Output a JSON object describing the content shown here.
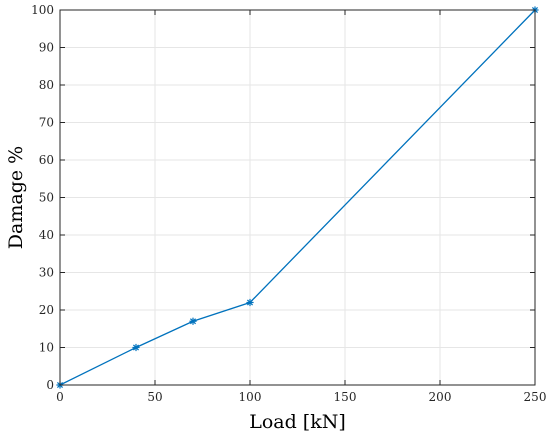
{
  "chart_data": {
    "type": "line",
    "xlabel": "Load [kN]",
    "ylabel": "Damage %",
    "xlim": [
      0,
      250
    ],
    "ylim": [
      0,
      100
    ],
    "xticks": [
      0,
      50,
      100,
      150,
      200,
      250
    ],
    "yticks": [
      0,
      10,
      20,
      30,
      40,
      50,
      60,
      70,
      80,
      90,
      100
    ],
    "grid": true,
    "series": [
      {
        "x": [
          0,
          40,
          70,
          100,
          250
        ],
        "y": [
          0,
          10,
          17,
          22,
          100
        ],
        "marker": "asterisk",
        "color": "#0072BD"
      }
    ]
  }
}
